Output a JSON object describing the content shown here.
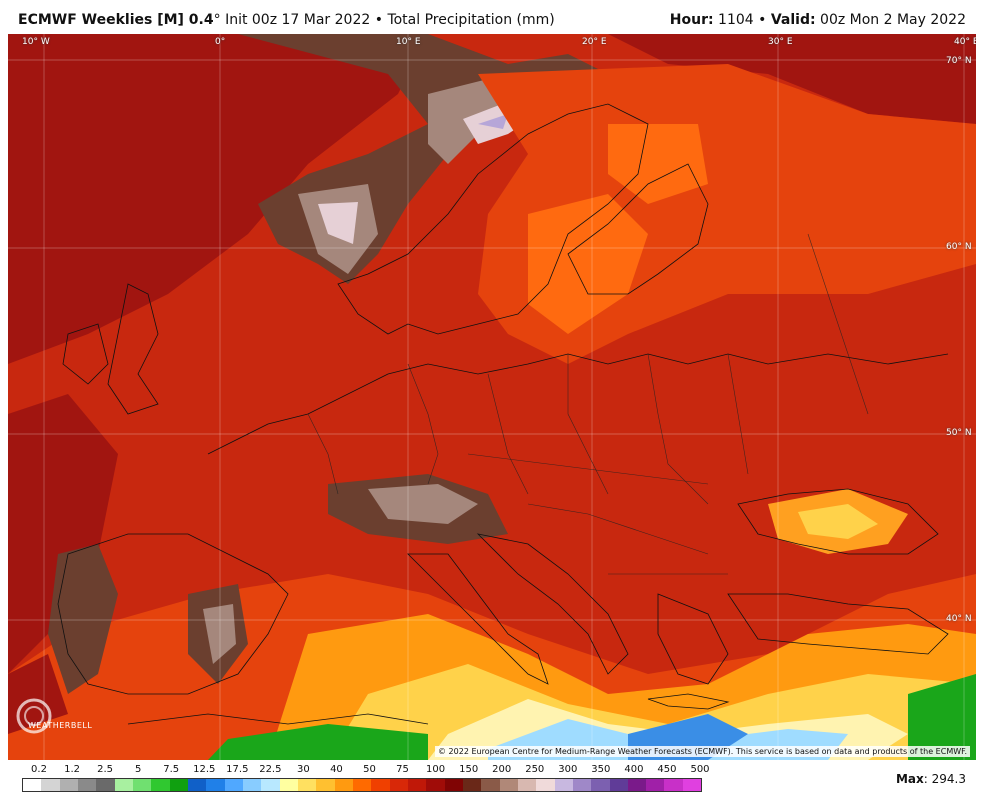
{
  "header": {
    "model": "ECMWF Weeklies [M] 0.4",
    "degree": "°",
    "init": "Init 00z 17 Mar 2022",
    "bullet": "•",
    "product": "Total Precipitation (mm)",
    "hour_label": "Hour:",
    "hour_value": "1104",
    "valid_label": "Valid:",
    "valid_value": "00z Mon 2 May 2022"
  },
  "map": {
    "lon_labels": [
      "10° W",
      "0°",
      "10° E",
      "20° E",
      "30° E",
      "40° E"
    ],
    "lat_labels": [
      "70° N",
      "60° N",
      "50° N",
      "40° N"
    ],
    "copyright": "© 2022 European Centre for Medium-Range Weather Forecasts (ECMWF). This service is based on data and products of the ECMWF.",
    "logo_text": "WEATHERBELL",
    "colors": {
      "very_high": "#a11510",
      "high": "#c8280f",
      "medium": "#e5430d",
      "low": "#ff6a10",
      "lower": "#ffa020",
      "low_yellow": "#ffd24a",
      "pale": "#fff3b0",
      "light_blue": "#9fdcff",
      "blue": "#3a8ee6",
      "green": "#1aa61a",
      "brown": "#6b3f2f",
      "grey_brown": "#a5877c",
      "pale_pink": "#e6d0d6",
      "lavender": "#b6a6d8"
    }
  },
  "legend": {
    "labels": [
      "0.2",
      "1.2",
      "2.5",
      "5",
      "7.5",
      "12.5",
      "17.5",
      "22.5",
      "30",
      "40",
      "50",
      "75",
      "100",
      "150",
      "200",
      "250",
      "300",
      "350",
      "400",
      "450",
      "500"
    ],
    "colors": [
      "#ffffff",
      "#d4d4d4",
      "#b0b0b0",
      "#8a8a8a",
      "#6a6a6a",
      "#a8f0a0",
      "#70e070",
      "#30c830",
      "#10a010",
      "#1060c8",
      "#2080e8",
      "#50a8ff",
      "#88ccff",
      "#b8e8ff",
      "#ffffa0",
      "#ffe060",
      "#ffc030",
      "#ff9a10",
      "#ff6a00",
      "#f04000",
      "#d82808",
      "#c01808",
      "#a00c08",
      "#800404",
      "#6a2818",
      "#8a5a48",
      "#b08878",
      "#d8b8b0",
      "#f0dada",
      "#c8b8e0",
      "#9f88c8",
      "#7c60b0",
      "#603c98",
      "#7a1a8a",
      "#a020a8",
      "#c830c8",
      "#e040e0"
    ]
  },
  "max": {
    "label": "Max",
    "value": "294.3"
  }
}
